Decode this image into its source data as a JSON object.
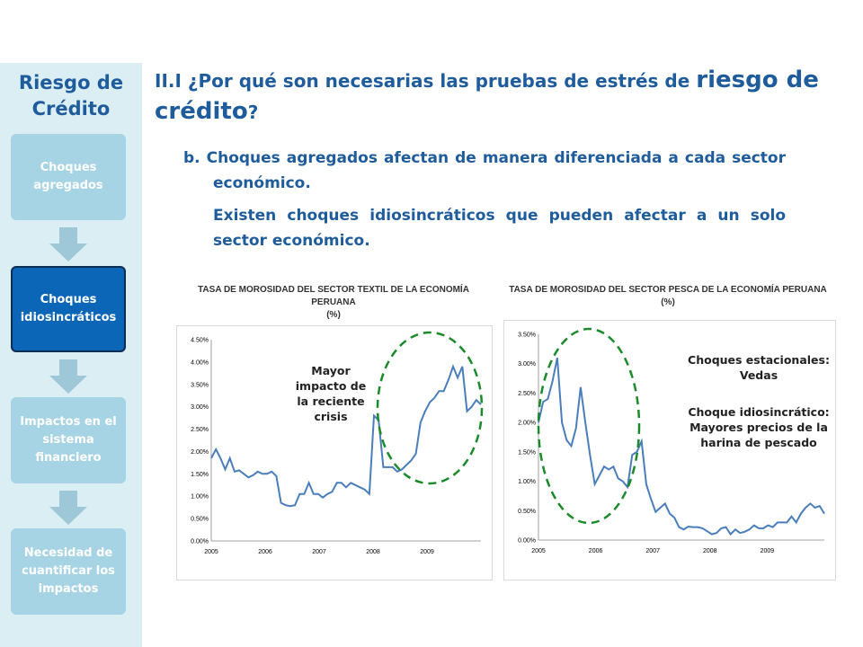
{
  "sidebar": {
    "title": "Riesgo de Crédito",
    "steps": [
      "Choques agregados",
      "Choques idiosincráticos",
      "Impactos en el sistema financiero",
      "Necesidad de cuantificar los impactos"
    ],
    "active_index": 1
  },
  "main": {
    "heading_prefix": "II.I ¿Por qué son necesarias las pruebas de estrés de ",
    "heading_emph": "riesgo de crédito",
    "heading_suffix": "?",
    "para_b": "b. Choques agregados afectan de manera diferenciada a cada sector económico.",
    "para_idio": "Existen choques idiosincráticos que pueden afectar a un solo sector económico."
  },
  "colors": {
    "accent": "#1f5c9c",
    "line": "#4a7ebb",
    "circle": "#1a8a2a",
    "sidebar_bg": "#dbeef4",
    "step": "#a7d4e4",
    "step_active": "#0b66b8"
  },
  "chart_data": [
    {
      "type": "line",
      "title": "TASA DE MOROSIDAD DEL SECTOR TEXTIL DE LA ECONOMÍA PERUANA",
      "subtitle": "(%)",
      "x_ticks": [
        "2005",
        "2006",
        "2007",
        "2008",
        "2009"
      ],
      "y_ticks": [
        "0.00%",
        "0.50%",
        "1.00%",
        "1.50%",
        "2.00%",
        "2.50%",
        "3.00%",
        "3.50%",
        "4.00%",
        "4.50%"
      ],
      "ylim": [
        0,
        4.5
      ],
      "annotation": "Mayor impacto de la reciente crisis",
      "values": [
        1.85,
        2.05,
        1.85,
        1.6,
        1.85,
        1.55,
        1.58,
        1.5,
        1.42,
        1.47,
        1.55,
        1.5,
        1.5,
        1.55,
        1.45,
        0.85,
        0.8,
        0.78,
        0.8,
        1.05,
        1.05,
        1.3,
        1.05,
        1.05,
        0.97,
        1.05,
        1.1,
        1.3,
        1.3,
        1.2,
        1.3,
        1.25,
        1.2,
        1.15,
        1.05,
        2.8,
        2.7,
        1.65,
        1.65,
        1.65,
        1.55,
        1.6,
        1.7,
        1.8,
        1.95,
        2.65,
        2.9,
        3.1,
        3.2,
        3.35,
        3.35,
        3.6,
        3.9,
        3.65,
        3.9,
        2.9,
        3.0,
        3.15,
        3.05
      ]
    },
    {
      "type": "line",
      "title": "TASA DE MOROSIDAD DEL SECTOR PESCA DE LA ECONOMÍA PERUANA",
      "subtitle": "(%)",
      "x_ticks": [
        "2005",
        "2006",
        "2007",
        "2008",
        "2009"
      ],
      "y_ticks": [
        "0.00%",
        "0.50%",
        "1.00%",
        "1.50%",
        "2.00%",
        "2.50%",
        "3.00%",
        "3.50%"
      ],
      "ylim": [
        0,
        3.5
      ],
      "annotation": [
        "Choques estacionales: Vedas",
        "Choque idiosincrático: Mayores precios de la harina de pescado"
      ],
      "values": [
        2.0,
        2.35,
        2.4,
        2.7,
        3.1,
        2.0,
        1.7,
        1.6,
        1.9,
        2.6,
        2.0,
        1.45,
        0.95,
        1.1,
        1.25,
        1.2,
        1.25,
        1.05,
        1.0,
        0.9,
        1.45,
        1.5,
        1.68,
        0.95,
        0.7,
        0.48,
        0.55,
        0.62,
        0.45,
        0.38,
        0.22,
        0.18,
        0.23,
        0.22,
        0.22,
        0.2,
        0.15,
        0.1,
        0.12,
        0.2,
        0.22,
        0.1,
        0.18,
        0.12,
        0.14,
        0.18,
        0.25,
        0.2,
        0.2,
        0.25,
        0.22,
        0.3,
        0.3,
        0.3,
        0.4,
        0.3,
        0.45,
        0.55,
        0.62,
        0.55,
        0.58,
        0.45
      ]
    }
  ]
}
